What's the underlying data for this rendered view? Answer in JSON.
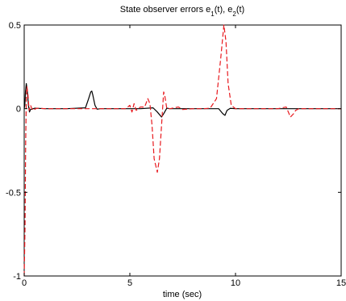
{
  "chart_data": {
    "type": "line",
    "title": {
      "prefix": "State observer errors e",
      "sub1": "1",
      "mid": "(t), e",
      "sub2": "2",
      "suffix": "(t)"
    },
    "xlabel": "time (sec)",
    "ylabel": "",
    "xlim": [
      0,
      15
    ],
    "ylim": [
      -1,
      0.5
    ],
    "x_ticks": [
      0,
      5,
      10,
      15
    ],
    "y_ticks": [
      -1,
      -0.5,
      0,
      0.5
    ],
    "x_tick_labels": [
      "0",
      "5",
      "10",
      "15"
    ],
    "y_tick_labels": [
      "-1",
      "-0.5",
      "0",
      "0.5"
    ],
    "grid": false,
    "series": [
      {
        "style": "solid",
        "color": "#000000",
        "points": [
          [
            0,
            0
          ],
          [
            0.03,
            0.02
          ],
          [
            0.06,
            0.1
          ],
          [
            0.1,
            0.15
          ],
          [
            0.15,
            0.1
          ],
          [
            0.2,
            0.02
          ],
          [
            0.25,
            -0.02
          ],
          [
            0.3,
            -0.005
          ],
          [
            0.5,
            0.003
          ],
          [
            1,
            0
          ],
          [
            2,
            0
          ],
          [
            2.9,
            0.005
          ],
          [
            3.05,
            0.06
          ],
          [
            3.15,
            0.1
          ],
          [
            3.2,
            0.105
          ],
          [
            3.25,
            0.08
          ],
          [
            3.35,
            0.02
          ],
          [
            3.45,
            -0.003
          ],
          [
            3.6,
            0
          ],
          [
            4.5,
            0
          ],
          [
            5.5,
            0
          ],
          [
            6.1,
            0.005
          ],
          [
            6.3,
            -0.02
          ],
          [
            6.5,
            -0.05
          ],
          [
            6.6,
            -0.03
          ],
          [
            6.75,
            0.003
          ],
          [
            6.9,
            0
          ],
          [
            8.5,
            0
          ],
          [
            9.2,
            0
          ],
          [
            9.4,
            -0.03
          ],
          [
            9.5,
            -0.04
          ],
          [
            9.6,
            -0.01
          ],
          [
            9.75,
            0.002
          ],
          [
            10,
            0
          ],
          [
            12,
            0
          ],
          [
            13,
            0
          ],
          [
            15,
            0
          ]
        ]
      },
      {
        "style": "dashed",
        "color": "#e8191e",
        "points": [
          [
            0,
            -1
          ],
          [
            0.04,
            -0.7
          ],
          [
            0.07,
            -0.2
          ],
          [
            0.1,
            0.06
          ],
          [
            0.13,
            0.13
          ],
          [
            0.18,
            0.08
          ],
          [
            0.23,
            -0.01
          ],
          [
            0.3,
            0.02
          ],
          [
            0.4,
            -0.01
          ],
          [
            0.6,
            0.003
          ],
          [
            1,
            0
          ],
          [
            2,
            0
          ],
          [
            3,
            0
          ],
          [
            4,
            0
          ],
          [
            4.8,
            0
          ],
          [
            5,
            0.02
          ],
          [
            5.1,
            -0.02
          ],
          [
            5.2,
            0.03
          ],
          [
            5.3,
            -0.01
          ],
          [
            5.5,
            0.01
          ],
          [
            5.7,
            0.01
          ],
          [
            5.85,
            0.06
          ],
          [
            5.95,
            0.03
          ],
          [
            6.05,
            -0.1
          ],
          [
            6.15,
            -0.3
          ],
          [
            6.3,
            -0.38
          ],
          [
            6.4,
            -0.3
          ],
          [
            6.5,
            -0.1
          ],
          [
            6.55,
            0
          ],
          [
            6.6,
            0.1
          ],
          [
            6.65,
            0.08
          ],
          [
            6.75,
            0
          ],
          [
            6.9,
            0
          ],
          [
            7.3,
            0.01
          ],
          [
            7.5,
            -0.005
          ],
          [
            8,
            0
          ],
          [
            8.5,
            0
          ],
          [
            8.8,
            0.003
          ],
          [
            9.1,
            0.06
          ],
          [
            9.3,
            0.3
          ],
          [
            9.45,
            0.5
          ],
          [
            9.55,
            0.4
          ],
          [
            9.65,
            0.15
          ],
          [
            9.8,
            0.02
          ],
          [
            10,
            0
          ],
          [
            11,
            0
          ],
          [
            12,
            0
          ],
          [
            12.4,
            0.01
          ],
          [
            12.6,
            -0.05
          ],
          [
            12.75,
            -0.03
          ],
          [
            12.85,
            -0.01
          ],
          [
            13,
            0
          ],
          [
            14,
            0
          ],
          [
            15,
            0
          ]
        ]
      }
    ]
  }
}
